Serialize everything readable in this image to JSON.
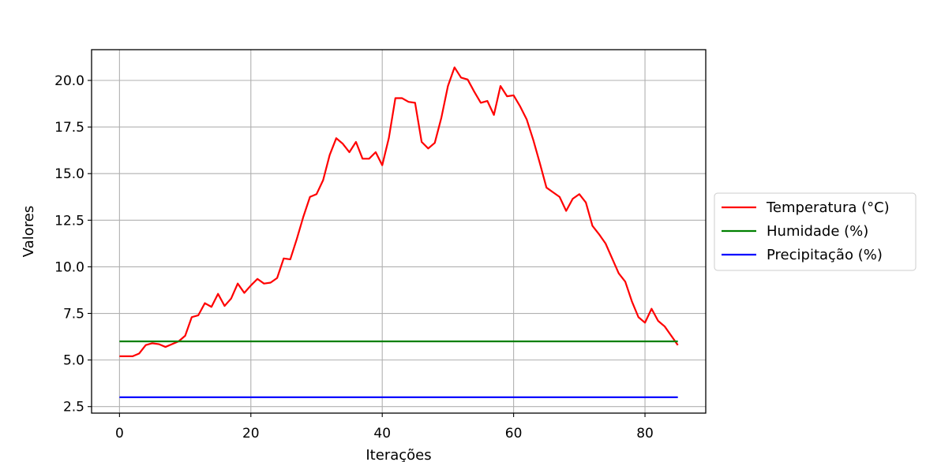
{
  "chart_data": {
    "type": "line",
    "xlabel": "Iterações",
    "ylabel": "Valores",
    "xlim": [
      -4.25,
      89.25
    ],
    "ylim": [
      2.15,
      21.65
    ],
    "xticks": [
      0,
      20,
      40,
      60,
      80
    ],
    "xtick_labels": [
      "0",
      "20",
      "40",
      "60",
      "80"
    ],
    "yticks": [
      2.5,
      5.0,
      7.5,
      10.0,
      12.5,
      15.0,
      17.5,
      20.0
    ],
    "ytick_labels": [
      "2.5",
      "5.0",
      "7.5",
      "10.0",
      "12.5",
      "15.0",
      "17.5",
      "20.0"
    ],
    "grid": true,
    "legend_position": "center-right-outside",
    "series": [
      {
        "name": "Temperatura (°C)",
        "color": "#ff0000",
        "x": [
          0,
          1,
          2,
          3,
          4,
          5,
          6,
          7,
          8,
          9,
          10,
          11,
          12,
          13,
          14,
          15,
          16,
          17,
          18,
          19,
          20,
          21,
          22,
          23,
          24,
          25,
          26,
          27,
          28,
          29,
          30,
          31,
          32,
          33,
          34,
          35,
          36,
          37,
          38,
          39,
          40,
          41,
          42,
          43,
          44,
          45,
          46,
          47,
          48,
          49,
          50,
          51,
          52,
          53,
          54,
          55,
          56,
          57,
          58,
          59,
          60,
          61,
          62,
          63,
          64,
          65,
          66,
          67,
          68,
          69,
          70,
          71,
          72,
          73,
          74,
          75,
          76,
          77,
          78,
          79,
          80,
          81,
          82,
          83,
          84,
          85
        ],
        "values": [
          5.2,
          5.2,
          5.2,
          5.35,
          5.8,
          5.9,
          5.85,
          5.7,
          5.85,
          6.0,
          6.3,
          7.3,
          7.4,
          8.05,
          7.85,
          8.55,
          7.9,
          8.3,
          9.1,
          8.6,
          9.0,
          9.35,
          9.1,
          9.15,
          9.4,
          10.45,
          10.4,
          11.5,
          12.7,
          13.75,
          13.9,
          14.65,
          16.0,
          16.9,
          16.6,
          16.15,
          16.7,
          15.8,
          15.8,
          16.15,
          15.45,
          16.9,
          19.05,
          19.05,
          18.85,
          18.8,
          16.7,
          16.35,
          16.65,
          18.0,
          19.7,
          20.7,
          20.15,
          20.05,
          19.4,
          18.8,
          18.9,
          18.15,
          19.7,
          19.15,
          19.2,
          18.6,
          17.9,
          16.8,
          15.55,
          14.25,
          14.0,
          13.75,
          13.0,
          13.65,
          13.9,
          13.45,
          12.2,
          11.75,
          11.25,
          10.45,
          9.65,
          9.2,
          8.15,
          7.3,
          7.0,
          7.75,
          7.1,
          6.8,
          6.3,
          5.8
        ]
      },
      {
        "name": "Humidade (%)",
        "color": "#008000",
        "x": [
          0,
          85
        ],
        "values": [
          6.0,
          6.0
        ]
      },
      {
        "name": "Precipitação (%)",
        "color": "#0000ff",
        "x": [
          0,
          85
        ],
        "values": [
          3.0,
          3.0
        ]
      }
    ]
  }
}
